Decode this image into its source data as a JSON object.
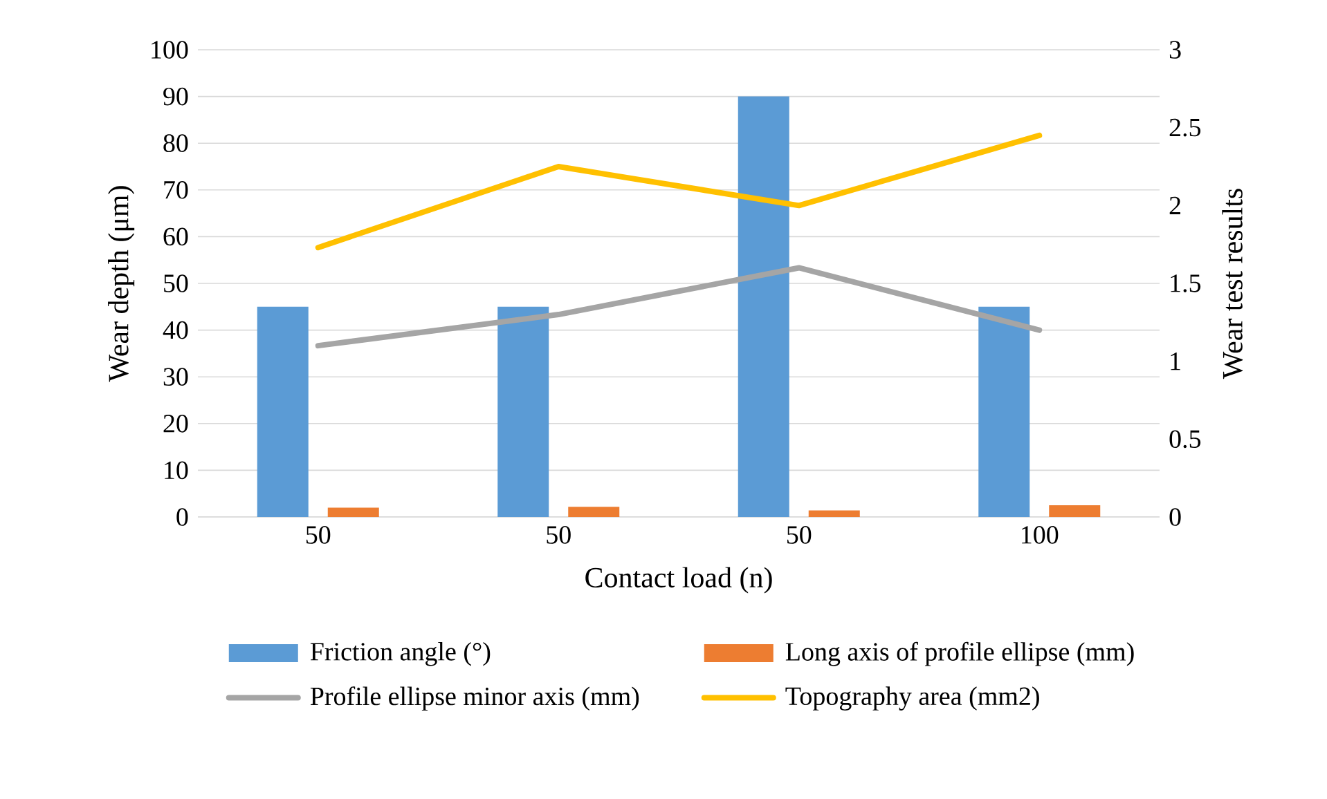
{
  "chart_data": {
    "type": "bar",
    "xlabel": "Contact load (n)",
    "ylabel": "Wear depth (μm)",
    "y2label": "Wear test results",
    "categories": [
      "50",
      "50",
      "50",
      "100"
    ],
    "series": [
      {
        "name": "Friction angle (°)",
        "color": "#5b9bd5",
        "values": [
          45,
          45,
          90,
          45
        ]
      },
      {
        "name": "Long axis of profile ellipse (mm)",
        "color": "#ed7d31",
        "values": [
          2.0,
          2.2,
          1.4,
          2.5
        ]
      },
      {
        "name": "Profile ellipse minor axis (mm)",
        "type": "line",
        "axis": "y2",
        "color": "#a5a5a5",
        "values": [
          1.1,
          1.3,
          1.6,
          1.2
        ]
      },
      {
        "name": "Topography area (mm2)",
        "type": "line",
        "axis": "y2",
        "color": "#ffc000",
        "values": [
          1.73,
          2.25,
          2.0,
          2.45
        ]
      }
    ],
    "ylim": [
      0,
      100
    ],
    "yticks": [
      0,
      10,
      20,
      30,
      40,
      50,
      60,
      70,
      80,
      90,
      100
    ],
    "y2lim": [
      0,
      3
    ],
    "y2ticks": [
      0,
      0.5,
      1,
      1.5,
      2,
      2.5,
      3
    ],
    "grid": "y",
    "legend": "bottom",
    "marker": "none",
    "line_style": "solid"
  }
}
